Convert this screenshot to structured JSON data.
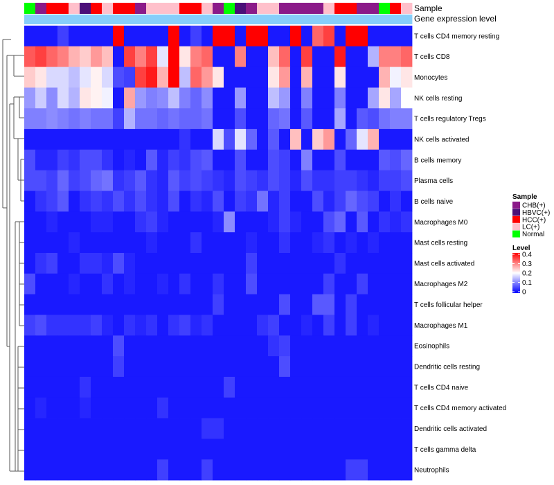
{
  "chart_data": {
    "type": "heatmap",
    "annotation_labels": {
      "sample": "Sample",
      "gene_expression": "Gene expression level"
    },
    "rows": [
      "T cells CD4 memory resting",
      "T cells CD8",
      "Monocytes",
      "NK cells resting",
      "T cells regulatory  Tregs",
      "NK cells activated",
      "B cells memory",
      "Plasma cells",
      "B cells naive",
      "Macrophages M0",
      "Mast cells resting",
      "Mast cells activated",
      "Macrophages M2",
      "T cells follicular helper",
      "Macrophages M1",
      "Eosinophils",
      "Dendritic cells resting",
      "T cells CD4 naive",
      "T cells CD4 memory activated",
      "Dendritic cells activated",
      "T cells gamma delta",
      "Neutrophils"
    ],
    "sample_groups": [
      "Normal",
      "CHB(+)",
      "HCC(+)",
      "HCC(+)",
      "LC(+)",
      "HBVC(+)",
      "HCC(+)",
      "LC(+)",
      "HCC(+)",
      "HCC(+)",
      "CHB(+)",
      "LC(+)",
      "LC(+)",
      "LC(+)",
      "HCC(+)",
      "HCC(+)",
      "LC(+)",
      "CHB(+)",
      "Normal",
      "HBVC(+)",
      "CHB(+)",
      "LC(+)",
      "LC(+)",
      "CHB(+)",
      "CHB(+)",
      "CHB(+)",
      "CHB(+)",
      "LC(+)",
      "HCC(+)",
      "HCC(+)",
      "CHB(+)",
      "CHB(+)",
      "Normal",
      "HCC(+)",
      "LC(+)"
    ],
    "gene_expression_level": [
      0.1,
      0.1,
      0.1,
      0.1,
      0.1,
      0.1,
      0.1,
      0.1,
      0.1,
      0.1,
      0.1,
      0.1,
      0.1,
      0.1,
      0.1,
      0.1,
      0.1,
      0.1,
      0.1,
      0.1,
      0.1,
      0.1,
      0.1,
      0.1,
      0.1,
      0.1,
      0.1,
      0.1,
      0.1,
      0.1,
      0.1,
      0.1,
      0.1,
      0.1,
      0.1
    ],
    "values": [
      [
        0.02,
        0.02,
        0.02,
        0.05,
        0.02,
        0.02,
        0.02,
        0.02,
        0.4,
        0.02,
        0.02,
        0.02,
        0.02,
        0.4,
        0.02,
        0.05,
        0.02,
        0.4,
        0.4,
        0.02,
        0.4,
        0.4,
        0.02,
        0.02,
        0.4,
        0.02,
        0.32,
        0.35,
        0.02,
        0.4,
        0.4,
        0.02,
        0.02,
        0.02,
        0.02
      ],
      [
        0.33,
        0.35,
        0.32,
        0.3,
        0.26,
        0.24,
        0.28,
        0.25,
        0.02,
        0.35,
        0.3,
        0.35,
        0.18,
        0.4,
        0.22,
        0.3,
        0.32,
        0.02,
        0.02,
        0.3,
        0.02,
        0.02,
        0.25,
        0.32,
        0.02,
        0.35,
        0.02,
        0.02,
        0.38,
        0.02,
        0.02,
        0.14,
        0.3,
        0.3,
        0.32
      ],
      [
        0.24,
        0.22,
        0.17,
        0.17,
        0.15,
        0.18,
        0.21,
        0.17,
        0.06,
        0.05,
        0.35,
        0.38,
        0.26,
        0.4,
        0.15,
        0.32,
        0.28,
        0.22,
        0.02,
        0.02,
        0.02,
        0.02,
        0.22,
        0.28,
        0.02,
        0.26,
        0.02,
        0.02,
        0.22,
        0.02,
        0.02,
        0.02,
        0.26,
        0.19,
        0.22
      ],
      [
        0.12,
        0.16,
        0.11,
        0.17,
        0.14,
        0.22,
        0.21,
        0.19,
        0.02,
        0.27,
        0.12,
        0.1,
        0.11,
        0.15,
        0.1,
        0.08,
        0.11,
        0.02,
        0.02,
        0.12,
        0.02,
        0.02,
        0.15,
        0.12,
        0.02,
        0.1,
        0.02,
        0.02,
        0.1,
        0.02,
        0.02,
        0.13,
        0.22,
        0.13,
        0.2
      ],
      [
        0.1,
        0.1,
        0.11,
        0.1,
        0.09,
        0.1,
        0.09,
        0.09,
        0.05,
        0.14,
        0.09,
        0.09,
        0.08,
        0.09,
        0.08,
        0.08,
        0.09,
        0.02,
        0.02,
        0.06,
        0.02,
        0.02,
        0.08,
        0.09,
        0.02,
        0.07,
        0.02,
        0.02,
        0.13,
        0.02,
        0.07,
        0.06,
        0.09,
        0.1,
        0.1
      ],
      [
        0.02,
        0.02,
        0.02,
        0.02,
        0.02,
        0.02,
        0.02,
        0.02,
        0.02,
        0.02,
        0.02,
        0.02,
        0.02,
        0.02,
        0.04,
        0.02,
        0.02,
        0.17,
        0.06,
        0.18,
        0.08,
        0.02,
        0.07,
        0.02,
        0.25,
        0.02,
        0.24,
        0.28,
        0.02,
        0.08,
        0.18,
        0.26,
        0.02,
        0.02,
        0.02
      ],
      [
        0.06,
        0.03,
        0.03,
        0.05,
        0.04,
        0.06,
        0.06,
        0.04,
        0.02,
        0.03,
        0.02,
        0.07,
        0.03,
        0.05,
        0.04,
        0.06,
        0.07,
        0.02,
        0.02,
        0.06,
        0.02,
        0.02,
        0.06,
        0.05,
        0.02,
        0.1,
        0.02,
        0.02,
        0.06,
        0.02,
        0.02,
        0.02,
        0.07,
        0.06,
        0.08
      ],
      [
        0.06,
        0.06,
        0.05,
        0.08,
        0.05,
        0.06,
        0.08,
        0.09,
        0.04,
        0.05,
        0.07,
        0.04,
        0.03,
        0.07,
        0.05,
        0.06,
        0.05,
        0.04,
        0.03,
        0.06,
        0.05,
        0.04,
        0.06,
        0.05,
        0.03,
        0.06,
        0.04,
        0.04,
        0.05,
        0.05,
        0.04,
        0.03,
        0.05,
        0.05,
        0.06
      ],
      [
        0.02,
        0.04,
        0.05,
        0.07,
        0.02,
        0.04,
        0.05,
        0.04,
        0.06,
        0.04,
        0.06,
        0.04,
        0.03,
        0.06,
        0.02,
        0.04,
        0.03,
        0.06,
        0.02,
        0.05,
        0.04,
        0.09,
        0.03,
        0.05,
        0.02,
        0.02,
        0.06,
        0.03,
        0.05,
        0.08,
        0.06,
        0.05,
        0.02,
        0.04,
        0.02
      ],
      [
        0.02,
        0.02,
        0.03,
        0.02,
        0.02,
        0.02,
        0.03,
        0.03,
        0.02,
        0.02,
        0.04,
        0.05,
        0.03,
        0.02,
        0.02,
        0.02,
        0.02,
        0.03,
        0.11,
        0.02,
        0.02,
        0.02,
        0.03,
        0.05,
        0.03,
        0.02,
        0.02,
        0.06,
        0.08,
        0.02,
        0.07,
        0.02,
        0.04,
        0.03,
        0.04
      ],
      [
        0.02,
        0.02,
        0.02,
        0.02,
        0.03,
        0.02,
        0.02,
        0.02,
        0.02,
        0.02,
        0.02,
        0.03,
        0.02,
        0.02,
        0.02,
        0.04,
        0.02,
        0.02,
        0.02,
        0.02,
        0.03,
        0.02,
        0.02,
        0.04,
        0.02,
        0.02,
        0.03,
        0.04,
        0.02,
        0.03,
        0.02,
        0.03,
        0.02,
        0.02,
        0.02
      ],
      [
        0.02,
        0.04,
        0.05,
        0.02,
        0.02,
        0.04,
        0.04,
        0.03,
        0.06,
        0.03,
        0.02,
        0.02,
        0.02,
        0.02,
        0.02,
        0.02,
        0.02,
        0.02,
        0.02,
        0.02,
        0.05,
        0.02,
        0.02,
        0.02,
        0.02,
        0.02,
        0.02,
        0.02,
        0.04,
        0.02,
        0.02,
        0.02,
        0.02,
        0.02,
        0.02
      ],
      [
        0.06,
        0.02,
        0.02,
        0.02,
        0.03,
        0.02,
        0.02,
        0.04,
        0.02,
        0.03,
        0.02,
        0.02,
        0.03,
        0.02,
        0.04,
        0.02,
        0.02,
        0.04,
        0.02,
        0.02,
        0.06,
        0.02,
        0.02,
        0.02,
        0.02,
        0.02,
        0.02,
        0.05,
        0.02,
        0.02,
        0.05,
        0.02,
        0.02,
        0.02,
        0.02
      ],
      [
        0.02,
        0.02,
        0.02,
        0.02,
        0.02,
        0.02,
        0.02,
        0.02,
        0.02,
        0.02,
        0.02,
        0.02,
        0.02,
        0.02,
        0.02,
        0.02,
        0.02,
        0.05,
        0.02,
        0.02,
        0.02,
        0.02,
        0.02,
        0.06,
        0.02,
        0.02,
        0.07,
        0.07,
        0.02,
        0.05,
        0.02,
        0.02,
        0.02,
        0.02,
        0.02
      ],
      [
        0.05,
        0.06,
        0.04,
        0.04,
        0.04,
        0.04,
        0.05,
        0.03,
        0.02,
        0.04,
        0.03,
        0.04,
        0.02,
        0.04,
        0.05,
        0.03,
        0.04,
        0.02,
        0.02,
        0.02,
        0.02,
        0.04,
        0.05,
        0.02,
        0.02,
        0.03,
        0.02,
        0.05,
        0.02,
        0.05,
        0.02,
        0.03,
        0.02,
        0.02,
        0.02
      ],
      [
        0.02,
        0.02,
        0.02,
        0.02,
        0.02,
        0.02,
        0.02,
        0.02,
        0.06,
        0.02,
        0.02,
        0.02,
        0.02,
        0.02,
        0.02,
        0.02,
        0.02,
        0.02,
        0.02,
        0.02,
        0.02,
        0.02,
        0.04,
        0.05,
        0.02,
        0.02,
        0.02,
        0.02,
        0.02,
        0.02,
        0.02,
        0.02,
        0.02,
        0.02,
        0.02
      ],
      [
        0.02,
        0.02,
        0.02,
        0.02,
        0.02,
        0.02,
        0.02,
        0.02,
        0.05,
        0.02,
        0.02,
        0.02,
        0.02,
        0.02,
        0.02,
        0.02,
        0.02,
        0.02,
        0.02,
        0.02,
        0.02,
        0.02,
        0.02,
        0.06,
        0.02,
        0.02,
        0.02,
        0.02,
        0.02,
        0.02,
        0.02,
        0.02,
        0.02,
        0.02,
        0.02
      ],
      [
        0.02,
        0.02,
        0.02,
        0.02,
        0.02,
        0.04,
        0.02,
        0.02,
        0.02,
        0.02,
        0.02,
        0.02,
        0.02,
        0.02,
        0.02,
        0.02,
        0.02,
        0.02,
        0.05,
        0.02,
        0.02,
        0.02,
        0.02,
        0.02,
        0.02,
        0.02,
        0.02,
        0.02,
        0.02,
        0.02,
        0.02,
        0.02,
        0.02,
        0.02,
        0.02
      ],
      [
        0.02,
        0.03,
        0.02,
        0.02,
        0.02,
        0.03,
        0.02,
        0.02,
        0.02,
        0.02,
        0.02,
        0.02,
        0.04,
        0.02,
        0.02,
        0.02,
        0.02,
        0.02,
        0.02,
        0.02,
        0.02,
        0.02,
        0.02,
        0.02,
        0.02,
        0.02,
        0.02,
        0.02,
        0.02,
        0.02,
        0.02,
        0.02,
        0.02,
        0.02,
        0.02
      ],
      [
        0.02,
        0.02,
        0.02,
        0.02,
        0.02,
        0.02,
        0.02,
        0.02,
        0.02,
        0.02,
        0.02,
        0.02,
        0.02,
        0.02,
        0.02,
        0.02,
        0.04,
        0.04,
        0.02,
        0.02,
        0.02,
        0.02,
        0.02,
        0.02,
        0.02,
        0.02,
        0.02,
        0.02,
        0.02,
        0.02,
        0.02,
        0.02,
        0.02,
        0.02,
        0.02
      ],
      [
        0.02,
        0.02,
        0.02,
        0.02,
        0.02,
        0.02,
        0.02,
        0.02,
        0.02,
        0.02,
        0.02,
        0.02,
        0.02,
        0.02,
        0.02,
        0.02,
        0.02,
        0.02,
        0.02,
        0.02,
        0.02,
        0.02,
        0.02,
        0.02,
        0.02,
        0.02,
        0.02,
        0.02,
        0.02,
        0.02,
        0.02,
        0.02,
        0.02,
        0.02,
        0.02
      ],
      [
        0.02,
        0.02,
        0.02,
        0.02,
        0.02,
        0.02,
        0.02,
        0.02,
        0.02,
        0.02,
        0.02,
        0.02,
        0.05,
        0.02,
        0.02,
        0.02,
        0.05,
        0.02,
        0.02,
        0.02,
        0.02,
        0.02,
        0.02,
        0.02,
        0.02,
        0.02,
        0.02,
        0.02,
        0.02,
        0.05,
        0.05,
        0.02,
        0.02,
        0.02,
        0.02
      ]
    ],
    "sample_legend": {
      "title": "Sample",
      "entries": [
        {
          "label": "CHB(+)",
          "color": "#8B1A89"
        },
        {
          "label": "HBVC(+)",
          "color": "#4B0F78"
        },
        {
          "label": "HCC(+)",
          "color": "#FF0000"
        },
        {
          "label": "LC(+)",
          "color": "#FFC0CB"
        },
        {
          "label": "Normal",
          "color": "#00FF00"
        }
      ]
    },
    "level_legend": {
      "title": "Level",
      "ticks": [
        "0.4",
        "0.3",
        "0.2",
        "0.1",
        "0"
      ],
      "range": [
        0,
        0.4
      ]
    },
    "gene_expression_color": "#87CEFA",
    "color_scale": {
      "low": "#0000FF",
      "mid": "#FFFFFF",
      "high": "#FF0000",
      "mid_value": 0.2
    }
  }
}
